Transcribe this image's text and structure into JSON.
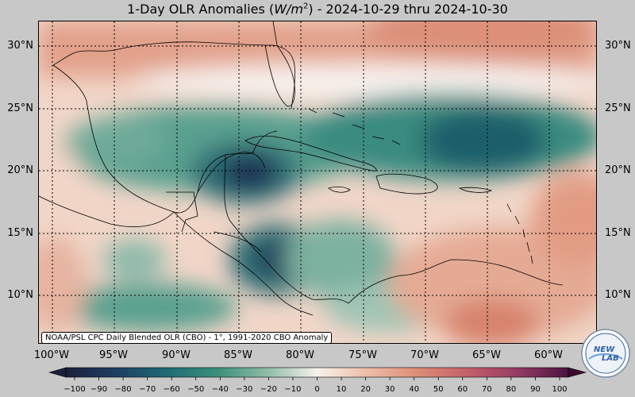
{
  "title": "1-Day OLR Anomalies (W/m²) - 2024-10-29 thru 2024-10-30",
  "title_parts": {
    "prefix": "1-Day OLR Anomalies (",
    "unit_base": "W/m",
    "unit_exp": "2",
    "suffix": ") - 2024-10-29 thru 2024-10-30"
  },
  "lat_labels": [
    "30°N",
    "25°N",
    "20°N",
    "15°N",
    "10°N"
  ],
  "lon_labels": [
    "100°W",
    "95°W",
    "90°W",
    "85°W",
    "80°W",
    "75°W",
    "70°W",
    "65°W",
    "60°W"
  ],
  "credit": "NOAA/PSL CPC Daily Blended OLR (CBO) - 1°, 1991-2020 CBO Anomaly",
  "colorbar": {
    "ticks": [
      "−100",
      "−90",
      "−80",
      "−70",
      "−60",
      "−50",
      "−40",
      "−30",
      "−20",
      "−10",
      "0",
      "10",
      "20",
      "30",
      "40",
      "50",
      "60",
      "70",
      "80",
      "90",
      "100"
    ],
    "range": [
      -100,
      100
    ]
  },
  "logo": {
    "text_top": "NEW",
    "text_bottom": "LAB"
  },
  "colors": {
    "negative_strong": "#1e2a4e",
    "negative": "#2a8a7a",
    "neutral": "#f6f1ea",
    "positive": "#e29c84",
    "positive_strong": "#6a1a4a"
  }
}
